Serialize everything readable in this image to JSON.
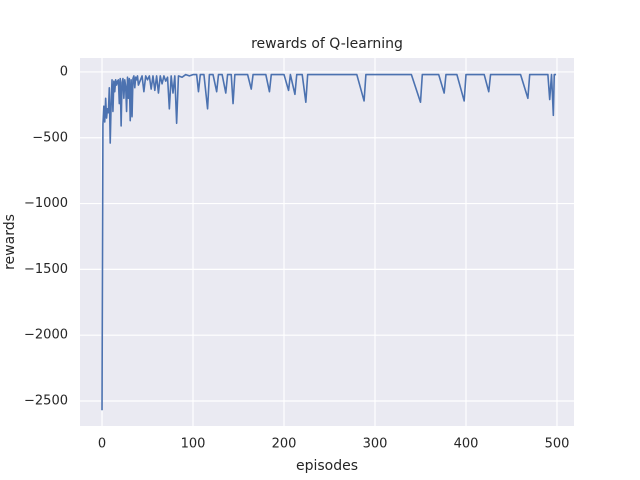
{
  "chart_data": {
    "type": "line",
    "title": "rewards of Q-learning",
    "x_label": "episodes",
    "y_label": "rewards",
    "x": [
      0,
      1,
      2,
      3,
      4,
      5,
      6,
      7,
      8,
      9,
      10,
      11,
      12,
      13,
      14,
      15,
      16,
      17,
      18,
      19,
      20,
      21,
      22,
      23,
      24,
      25,
      26,
      27,
      28,
      29,
      30,
      31,
      32,
      33,
      34,
      35,
      36,
      37,
      38,
      39,
      40,
      44,
      46,
      48,
      50,
      52,
      54,
      56,
      58,
      60,
      62,
      64,
      66,
      68,
      70,
      72,
      74,
      76,
      78,
      80,
      82,
      84,
      88,
      92,
      96,
      100,
      104,
      106,
      108,
      112,
      116,
      118,
      122,
      126,
      128,
      132,
      136,
      138,
      142,
      144,
      146,
      150,
      160,
      164,
      166,
      180,
      184,
      186,
      200,
      205,
      207,
      212,
      214,
      220,
      224,
      226,
      240,
      250,
      260,
      270,
      280,
      288,
      290,
      300,
      310,
      320,
      340,
      350,
      352,
      360,
      370,
      376,
      378,
      390,
      398,
      400,
      410,
      420,
      425,
      427,
      440,
      450,
      460,
      468,
      470,
      480,
      490,
      492,
      494,
      496,
      497,
      498,
      499
    ],
    "series": [
      {
        "name": "rewards",
        "color": "#4c72b0",
        "values": [
          -2570,
          -400,
          -260,
          -380,
          -200,
          -350,
          -280,
          -310,
          -120,
          -540,
          -250,
          -60,
          -300,
          -70,
          -150,
          -60,
          -100,
          -70,
          -60,
          -240,
          -50,
          -410,
          -80,
          -50,
          -200,
          -60,
          -110,
          -300,
          -40,
          -200,
          -50,
          -370,
          -60,
          -340,
          -50,
          -30,
          -120,
          -40,
          -60,
          -30,
          -100,
          -30,
          -150,
          -30,
          -60,
          -30,
          -130,
          -30,
          -140,
          -30,
          -160,
          -30,
          -90,
          -30,
          -70,
          -40,
          -280,
          -30,
          -160,
          -30,
          -390,
          -30,
          -40,
          -20,
          -30,
          -20,
          -20,
          -150,
          -20,
          -20,
          -280,
          -20,
          -20,
          -150,
          -20,
          -20,
          -160,
          -20,
          -20,
          -240,
          -20,
          -20,
          -20,
          -130,
          -20,
          -20,
          -150,
          -20,
          -20,
          -140,
          -20,
          -170,
          -20,
          -20,
          -230,
          -20,
          -20,
          -20,
          -20,
          -20,
          -20,
          -220,
          -20,
          -20,
          -20,
          -20,
          -20,
          -230,
          -20,
          -20,
          -20,
          -160,
          -20,
          -20,
          -220,
          -20,
          -20,
          -20,
          -150,
          -20,
          -20,
          -20,
          -20,
          -200,
          -20,
          -20,
          -20,
          -210,
          -20,
          -330,
          -20,
          -20,
          -20
        ]
      }
    ],
    "xlim": [
      -24.2,
      518.7
    ],
    "ylim": [
      -2690,
      106
    ],
    "xticks": [
      0,
      100,
      200,
      300,
      400,
      500
    ],
    "yticks": [
      {
        "value": -2500,
        "label": "−2500"
      },
      {
        "value": -2000,
        "label": "−2000"
      },
      {
        "value": -1500,
        "label": "−1500"
      },
      {
        "value": -1000,
        "label": "−1000"
      },
      {
        "value": -500,
        "label": "−500"
      },
      0
    ],
    "grid": true
  }
}
